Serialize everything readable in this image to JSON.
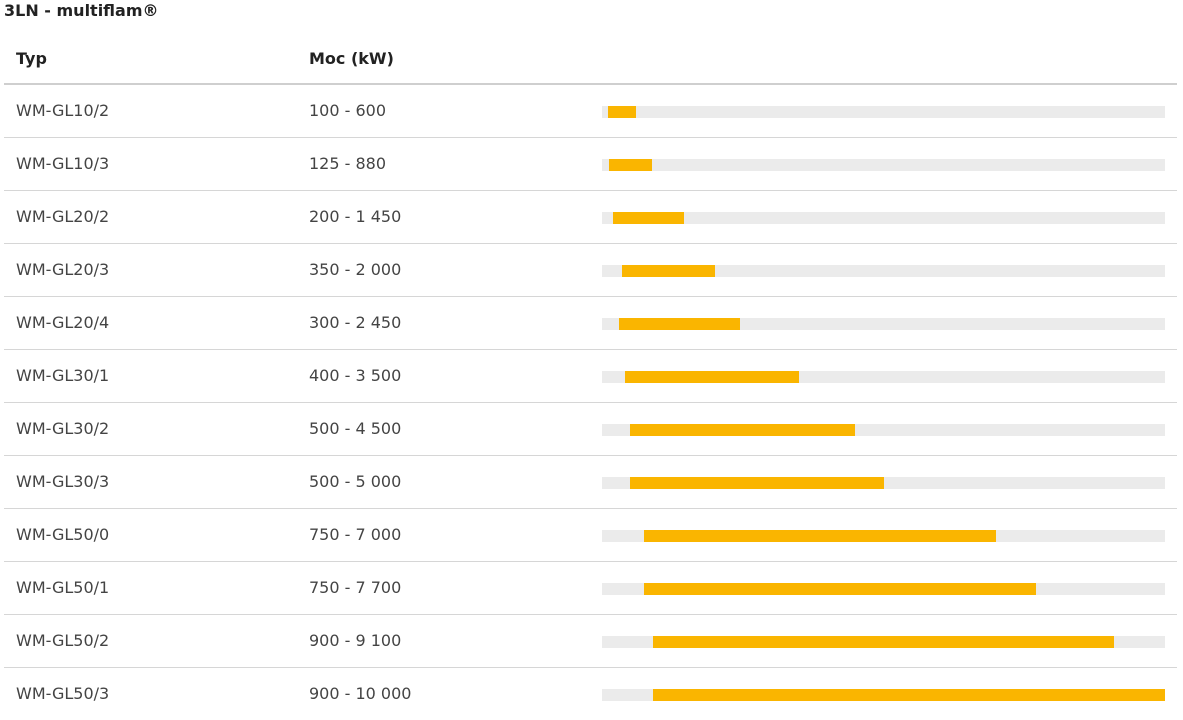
{
  "title": "3LN - multiflam®",
  "columns": {
    "type": "Typ",
    "power": "Moc (kW)"
  },
  "scale_max_kw": 10000,
  "colors": {
    "bar_fill": "#fab500",
    "bar_track": "#ebebeb"
  },
  "rows": [
    {
      "type": "WM-GL10/2",
      "power": "100 - 600",
      "min": 100,
      "max": 600
    },
    {
      "type": "WM-GL10/3",
      "power": "125 - 880",
      "min": 125,
      "max": 880
    },
    {
      "type": "WM-GL20/2",
      "power": "200 - 1 450",
      "min": 200,
      "max": 1450
    },
    {
      "type": "WM-GL20/3",
      "power": "350 - 2 000",
      "min": 350,
      "max": 2000
    },
    {
      "type": "WM-GL20/4",
      "power": "300 - 2 450",
      "min": 300,
      "max": 2450
    },
    {
      "type": "WM-GL30/1",
      "power": "400 - 3 500",
      "min": 400,
      "max": 3500
    },
    {
      "type": "WM-GL30/2",
      "power": "500 - 4 500",
      "min": 500,
      "max": 4500
    },
    {
      "type": "WM-GL30/3",
      "power": "500 - 5 000",
      "min": 500,
      "max": 5000
    },
    {
      "type": "WM-GL50/0",
      "power": "750 - 7 000",
      "min": 750,
      "max": 7000
    },
    {
      "type": "WM-GL50/1",
      "power": "750 - 7 700",
      "min": 750,
      "max": 7700
    },
    {
      "type": "WM-GL50/2",
      "power": "900 - 9 100",
      "min": 900,
      "max": 9100
    },
    {
      "type": "WM-GL50/3",
      "power": "900 - 10 000",
      "min": 900,
      "max": 10000
    }
  ]
}
